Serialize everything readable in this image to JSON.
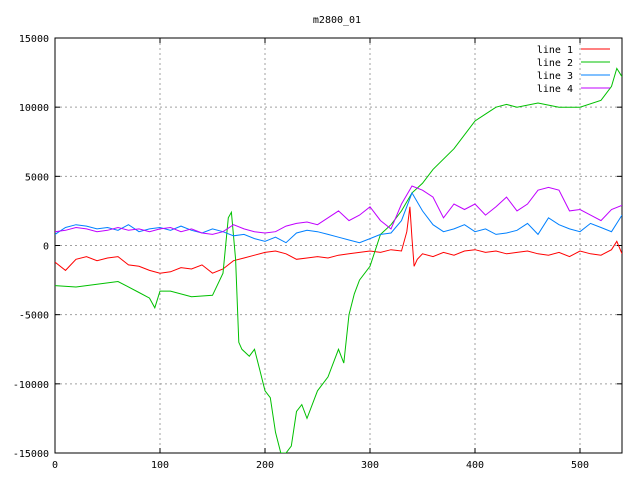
{
  "chart_data": {
    "type": "line",
    "title": "m2800_01",
    "xlabel": "",
    "ylabel": "",
    "xlim": [
      0,
      540
    ],
    "ylim": [
      -15000,
      15000
    ],
    "xticks": [
      0,
      100,
      200,
      300,
      400,
      500
    ],
    "yticks": [
      -15000,
      -10000,
      -5000,
      0,
      5000,
      10000,
      15000
    ],
    "grid": true,
    "legend_position": "top-right",
    "series": [
      {
        "name": "line 1",
        "color": "#ff0000",
        "x": [
          0,
          10,
          20,
          30,
          40,
          50,
          60,
          70,
          80,
          90,
          100,
          110,
          120,
          130,
          140,
          150,
          160,
          170,
          180,
          190,
          200,
          210,
          220,
          230,
          240,
          250,
          260,
          270,
          280,
          290,
          300,
          310,
          320,
          330,
          335,
          338,
          340,
          342,
          345,
          350,
          360,
          370,
          380,
          390,
          400,
          410,
          420,
          430,
          440,
          450,
          460,
          470,
          480,
          490,
          500,
          510,
          520,
          530,
          535,
          540
        ],
        "y": [
          -1200,
          -1800,
          -1000,
          -800,
          -1100,
          -900,
          -800,
          -1400,
          -1500,
          -1800,
          -2000,
          -1900,
          -1600,
          -1700,
          -1400,
          -2000,
          -1700,
          -1100,
          -900,
          -700,
          -500,
          -400,
          -600,
          -1000,
          -900,
          -800,
          -900,
          -700,
          -600,
          -500,
          -400,
          -500,
          -300,
          -400,
          1000,
          2800,
          500,
          -1500,
          -1000,
          -600,
          -800,
          -500,
          -700,
          -400,
          -300,
          -500,
          -400,
          -600,
          -500,
          -400,
          -600,
          -700,
          -500,
          -800,
          -400,
          -600,
          -700,
          -300,
          300,
          -600
        ]
      },
      {
        "name": "line 2",
        "color": "#00c000",
        "x": [
          0,
          20,
          40,
          60,
          80,
          90,
          95,
          100,
          110,
          130,
          150,
          160,
          165,
          168,
          172,
          175,
          178,
          185,
          190,
          195,
          200,
          205,
          210,
          215,
          220,
          225,
          230,
          235,
          240,
          250,
          260,
          270,
          275,
          280,
          285,
          290,
          300,
          310,
          320,
          330,
          340,
          350,
          360,
          380,
          400,
          410,
          420,
          430,
          440,
          460,
          480,
          500,
          520,
          530,
          535,
          540
        ],
        "y": [
          -2900,
          -3000,
          -2800,
          -2600,
          -3400,
          -3800,
          -4500,
          -3300,
          -3300,
          -3700,
          -3600,
          -2000,
          2000,
          2400,
          -1000,
          -7000,
          -7500,
          -8000,
          -7500,
          -9000,
          -10500,
          -11000,
          -13500,
          -15000,
          -15000,
          -14500,
          -12000,
          -11500,
          -12500,
          -10500,
          -9500,
          -7500,
          -8500,
          -5000,
          -3500,
          -2500,
          -1500,
          800,
          1500,
          2500,
          3800,
          4500,
          5500,
          7000,
          9000,
          9500,
          10000,
          10200,
          10000,
          10300,
          10000,
          10000,
          10500,
          11500,
          12800,
          12200
        ]
      },
      {
        "name": "line 3",
        "color": "#0080ff",
        "x": [
          0,
          10,
          20,
          30,
          40,
          50,
          60,
          70,
          80,
          90,
          100,
          110,
          120,
          130,
          140,
          150,
          160,
          170,
          180,
          190,
          200,
          210,
          220,
          230,
          240,
          250,
          260,
          270,
          280,
          290,
          300,
          310,
          320,
          330,
          340,
          350,
          360,
          370,
          380,
          390,
          400,
          410,
          420,
          430,
          440,
          450,
          460,
          470,
          480,
          490,
          500,
          510,
          520,
          530,
          540
        ],
        "y": [
          800,
          1300,
          1500,
          1400,
          1200,
          1300,
          1100,
          1500,
          1000,
          1200,
          1300,
          1100,
          1400,
          1100,
          900,
          1200,
          1000,
          700,
          800,
          500,
          300,
          600,
          200,
          900,
          1100,
          1000,
          800,
          600,
          400,
          200,
          500,
          800,
          900,
          1800,
          3800,
          2500,
          1500,
          1000,
          1200,
          1500,
          1000,
          1200,
          800,
          900,
          1100,
          1600,
          800,
          2000,
          1500,
          1200,
          1000,
          1600,
          1300,
          1000,
          2200
        ]
      },
      {
        "name": "line 4",
        "color": "#c000ff",
        "x": [
          0,
          10,
          20,
          30,
          40,
          50,
          60,
          70,
          80,
          90,
          100,
          110,
          120,
          130,
          140,
          150,
          160,
          170,
          180,
          190,
          200,
          210,
          220,
          230,
          240,
          250,
          260,
          270,
          280,
          290,
          300,
          310,
          320,
          330,
          340,
          350,
          360,
          370,
          380,
          390,
          400,
          410,
          420,
          430,
          440,
          450,
          460,
          470,
          480,
          490,
          500,
          510,
          520,
          530,
          540
        ],
        "y": [
          1000,
          1100,
          1300,
          1200,
          1000,
          1100,
          1300,
          1100,
          1200,
          1000,
          1200,
          1300,
          1000,
          1200,
          900,
          800,
          1000,
          1500,
          1200,
          1000,
          900,
          1000,
          1400,
          1600,
          1700,
          1500,
          2000,
          2500,
          1800,
          2200,
          2800,
          1800,
          1200,
          3000,
          4300,
          4000,
          3500,
          2000,
          3000,
          2600,
          3000,
          2200,
          2800,
          3500,
          2500,
          3000,
          4000,
          4200,
          4000,
          2500,
          2600,
          2200,
          1800,
          2600,
          2900
        ]
      }
    ]
  }
}
